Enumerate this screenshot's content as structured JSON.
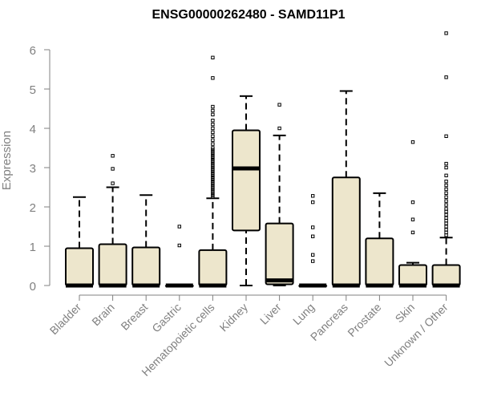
{
  "chart_data": {
    "type": "box",
    "title": "ENSG00000262480 - SAMD11P1",
    "ylabel": "Expression",
    "xlabel": "",
    "ylim": [
      0,
      6.5
    ],
    "yticks": [
      0,
      1,
      2,
      3,
      4,
      5,
      6
    ],
    "categories": [
      "Bladder",
      "Brain",
      "Breast",
      "Gastric",
      "Hematopoietic cells",
      "Kidney",
      "Liver",
      "Lung",
      "Pancreas",
      "Prostate",
      "Skin",
      "Unknown / Other"
    ],
    "boxes": [
      {
        "category": "Bladder",
        "whisker_low": 0,
        "q1": 0,
        "median": 0,
        "q3": 0.95,
        "whisker_high": 2.25,
        "outliers": []
      },
      {
        "category": "Brain",
        "whisker_low": 0,
        "q1": 0,
        "median": 0,
        "q3": 1.05,
        "whisker_high": 2.5,
        "outliers": [
          2.6,
          2.97,
          3.3
        ]
      },
      {
        "category": "Breast",
        "whisker_low": 0,
        "q1": 0,
        "median": 0,
        "q3": 0.97,
        "whisker_high": 2.3,
        "outliers": []
      },
      {
        "category": "Gastric",
        "whisker_low": 0,
        "q1": 0,
        "median": 0,
        "q3": 0,
        "whisker_high": 0,
        "outliers": [
          1.02,
          1.5
        ]
      },
      {
        "category": "Hematopoietic cells",
        "whisker_low": 0,
        "q1": 0,
        "median": 0,
        "q3": 0.9,
        "whisker_high": 2.22,
        "outliers": [
          2.25,
          2.3,
          2.35,
          2.4,
          2.45,
          2.5,
          2.55,
          2.6,
          2.65,
          2.7,
          2.75,
          2.8,
          2.85,
          2.9,
          2.95,
          3.0,
          3.05,
          3.1,
          3.15,
          3.2,
          3.25,
          3.3,
          3.35,
          3.4,
          3.45,
          3.5,
          3.6,
          3.7,
          3.8,
          3.9,
          4.0,
          4.1,
          4.2,
          4.35,
          4.45,
          4.55,
          5.28,
          5.8
        ]
      },
      {
        "category": "Kidney",
        "whisker_low": 0,
        "q1": 1.4,
        "median": 2.98,
        "q3": 3.95,
        "whisker_high": 4.82,
        "outliers": []
      },
      {
        "category": "Liver",
        "whisker_low": 0,
        "q1": 0.03,
        "median": 0.13,
        "q3": 1.58,
        "whisker_high": 3.82,
        "outliers": [
          4.0,
          4.6
        ]
      },
      {
        "category": "Lung",
        "whisker_low": 0,
        "q1": 0,
        "median": 0,
        "q3": 0,
        "whisker_high": 0,
        "outliers": [
          0.62,
          0.78,
          1.25,
          1.48,
          2.12,
          2.28
        ]
      },
      {
        "category": "Pancreas",
        "whisker_low": 0,
        "q1": 0,
        "median": 0,
        "q3": 2.75,
        "whisker_high": 4.95,
        "outliers": []
      },
      {
        "category": "Prostate",
        "whisker_low": 0,
        "q1": 0,
        "median": 0,
        "q3": 1.2,
        "whisker_high": 2.35,
        "outliers": []
      },
      {
        "category": "Skin",
        "whisker_low": 0,
        "q1": 0,
        "median": 0,
        "q3": 0.52,
        "whisker_high": 0.58,
        "outliers": [
          1.35,
          1.68,
          2.12,
          3.65
        ]
      },
      {
        "category": "Unknown / Other",
        "whisker_low": 0,
        "q1": 0,
        "median": 0,
        "q3": 0.52,
        "whisker_high": 1.22,
        "outliers": [
          1.28,
          1.35,
          1.42,
          1.5,
          1.58,
          1.65,
          1.72,
          1.8,
          1.88,
          1.95,
          2.05,
          2.15,
          2.25,
          2.35,
          2.45,
          2.55,
          2.65,
          2.8,
          3.0,
          3.1,
          3.8,
          5.3,
          6.42
        ]
      }
    ],
    "colors": {
      "box_fill": "#ede6cc",
      "box_stroke": "#000000",
      "axis": "#808080",
      "text": "#808080",
      "title": "#000000"
    },
    "grid": false,
    "legend": "none"
  }
}
